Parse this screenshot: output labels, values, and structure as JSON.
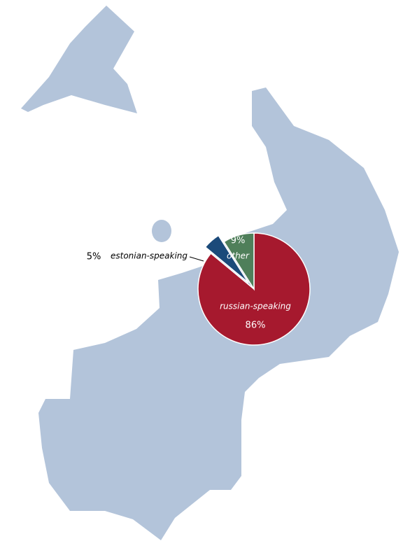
{
  "chart_data": {
    "type": "pie",
    "categories": [
      "russian-speaking",
      "estonian-speaking",
      "other"
    ],
    "values": [
      86,
      5,
      9
    ],
    "value_labels": [
      "86%",
      "5%",
      "9%"
    ],
    "colors": [
      "#a6192e",
      "#1b4a7a",
      "#4f7f5a"
    ],
    "explode": [
      false,
      true,
      false
    ]
  }
}
